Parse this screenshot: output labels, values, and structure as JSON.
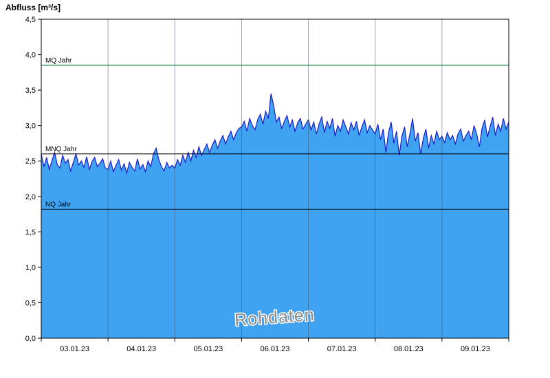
{
  "header": {
    "title": "Abfluss [m³/s]"
  },
  "watermark": "Rohdaten",
  "colors": {
    "area_fill": "#3fa3f2",
    "data_line": "#1a1acd",
    "grid_vertical": "#3c4b64",
    "mq_line": "#007733",
    "ref_line": "#000000",
    "axis": "#000000",
    "watermark_text": "#8c8c8c"
  },
  "chart_data": {
    "type": "area",
    "title": "Abfluss [m³/s]",
    "xlabel": "",
    "ylabel": "Abfluss [m³/s]",
    "ylim": [
      0,
      4.5
    ],
    "xlim": [
      0,
      7.0
    ],
    "grid": "vertical-day-boundaries",
    "legend": "none",
    "y_ticks": [
      {
        "value": 0.0,
        "label": "0,0"
      },
      {
        "value": 0.5,
        "label": "0,5"
      },
      {
        "value": 1.0,
        "label": "1,0"
      },
      {
        "value": 1.5,
        "label": "1,5"
      },
      {
        "value": 2.0,
        "label": "2,0"
      },
      {
        "value": 2.5,
        "label": "2,5"
      },
      {
        "value": 3.0,
        "label": "3,0"
      },
      {
        "value": 3.5,
        "label": "3,5"
      },
      {
        "value": 4.0,
        "label": "4,0"
      },
      {
        "value": 4.5,
        "label": "4,5"
      }
    ],
    "x_ticks": [
      {
        "pos": 0.5,
        "label": "03.01.23"
      },
      {
        "pos": 1.5,
        "label": "04.01.23"
      },
      {
        "pos": 2.5,
        "label": "05.01.23"
      },
      {
        "pos": 3.5,
        "label": "06.01.23"
      },
      {
        "pos": 4.5,
        "label": "07.01.23"
      },
      {
        "pos": 5.5,
        "label": "08.01.23"
      },
      {
        "pos": 6.5,
        "label": "09.01.23"
      }
    ],
    "day_boundaries": [
      1,
      2,
      3,
      4,
      5,
      6
    ],
    "reference_lines": [
      {
        "label": "MQ Jahr",
        "value": 3.85,
        "color": "#007733"
      },
      {
        "label": "MNQ Jahr",
        "value": 2.6,
        "color": "#000000"
      },
      {
        "label": "NQ Jahr",
        "value": 1.82,
        "color": "#000000"
      }
    ],
    "x_step": 0.04,
    "values": [
      2.6,
      2.42,
      2.55,
      2.38,
      2.5,
      2.62,
      2.45,
      2.4,
      2.58,
      2.47,
      2.52,
      2.36,
      2.48,
      2.6,
      2.44,
      2.5,
      2.41,
      2.56,
      2.38,
      2.49,
      2.55,
      2.42,
      2.47,
      2.53,
      2.4,
      2.38,
      2.5,
      2.35,
      2.44,
      2.52,
      2.37,
      2.46,
      2.33,
      2.48,
      2.41,
      2.36,
      2.53,
      2.39,
      2.45,
      2.35,
      2.5,
      2.42,
      2.6,
      2.68,
      2.52,
      2.42,
      2.36,
      2.48,
      2.4,
      2.44,
      2.4,
      2.52,
      2.44,
      2.58,
      2.48,
      2.62,
      2.5,
      2.65,
      2.55,
      2.7,
      2.58,
      2.66,
      2.74,
      2.62,
      2.72,
      2.8,
      2.68,
      2.78,
      2.86,
      2.74,
      2.84,
      2.92,
      2.8,
      2.9,
      2.96,
      2.98,
      3.06,
      2.92,
      3.1,
      3.0,
      2.94,
      3.08,
      3.16,
      3.02,
      3.2,
      3.1,
      3.45,
      3.28,
      3.05,
      3.12,
      2.96,
      3.06,
      3.14,
      2.98,
      3.08,
      2.92,
      3.04,
      3.1,
      2.95,
      3.02,
      3.08,
      2.94,
      3.05,
      2.88,
      3.02,
      3.12,
      2.9,
      3.06,
      2.96,
      3.1,
      2.85,
      3.0,
      2.92,
      3.08,
      2.98,
      2.88,
      3.04,
      2.94,
      3.06,
      2.86,
      2.98,
      3.08,
      2.9,
      3.0,
      2.94,
      2.88,
      3.02,
      2.8,
      2.95,
      2.62,
      2.9,
      3.05,
      2.75,
      2.92,
      2.58,
      2.85,
      2.98,
      2.7,
      2.88,
      3.1,
      2.78,
      2.9,
      2.6,
      2.82,
      2.95,
      2.68,
      2.86,
      2.74,
      2.92,
      2.8,
      2.85,
      2.76,
      2.9,
      2.8,
      2.86,
      2.74,
      2.88,
      2.95,
      2.78,
      2.86,
      2.92,
      2.8,
      3.0,
      2.88,
      2.7,
      2.96,
      3.08,
      2.84,
      2.98,
      3.12,
      2.86,
      3.02,
      2.92,
      3.1,
      2.95,
      3.05
    ]
  }
}
